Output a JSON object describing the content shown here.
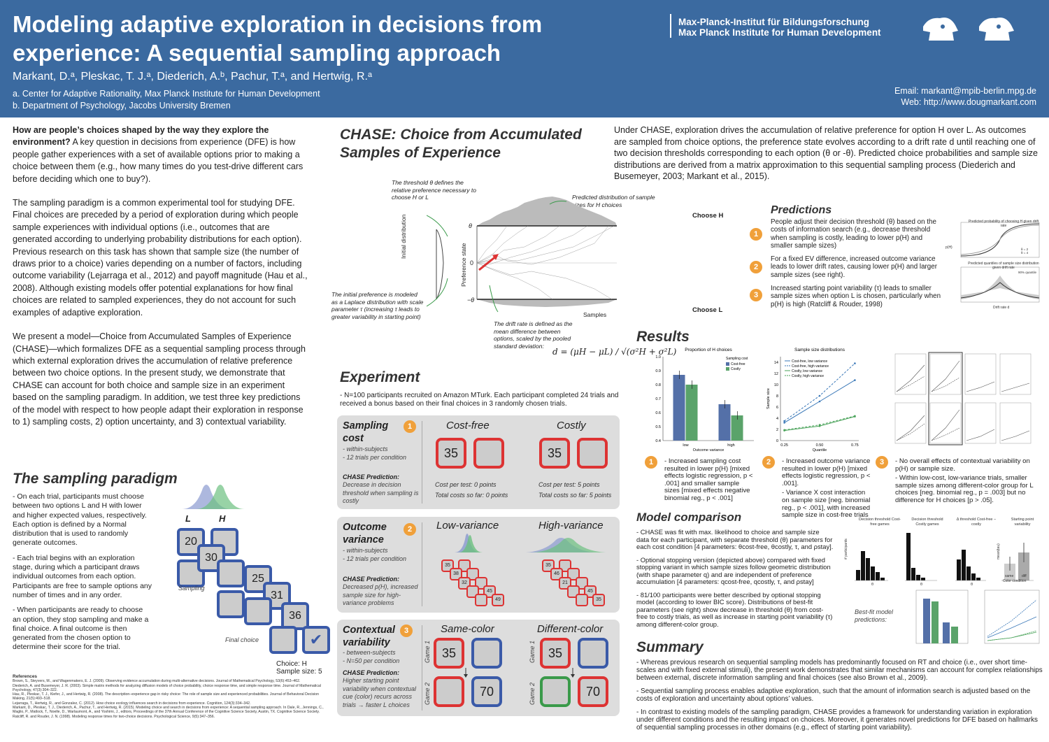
{
  "header": {
    "title": "Modeling adaptive exploration in decisions from experience: A sequential sampling approach",
    "authors": "Markant, D.ᵃ, Pleskac, T. J.ᵃ, Diederich, A.ᵇ, Pachur, T.ᵃ, and Hertwig, R.ᵃ",
    "affil_a": "a. Center for Adaptive Rationality, Max Planck Institute for Human Development",
    "affil_b": "b. Department of Psychology, Jacobs University Bremen",
    "inst_de": "Max-Planck-Institut für Bildungsforschung",
    "inst_en": "Max Planck Institute for Human Development",
    "email": "Email: markant@mpib-berlin.mpg.de",
    "web": "Web: http://www.dougmarkant.com"
  },
  "intro": {
    "q_bold": "How are people’s choices shaped by the way they explore the environment?",
    "q_rest": " A key question in decisions from experience (DFE) is how people gather experiences with a set of available options prior to making a choice between them (e.g., how many times do you test-drive different cars before deciding which one to buy?).",
    "p2": "The sampling paradigm is a common experimental tool for studying DFE. Final choices are preceded by a period of exploration during which people sample experiences with individual options (i.e., outcomes that are generated according to underlying probability distributions for each option). Previous research on this task has shown that sample size (the number of draws prior to a choice) varies depending on a number of factors, including outcome variability (Lejarraga et al., 2012) and payoff magnitude (Hau et al., 2008). Although existing models offer potential explanations for how final choices are related to sampled experiences, they do not account for such examples of adaptive exploration.",
    "p3": "We present a model—Choice from Accumulated Samples of Experience (CHASE)—which formalizes DFE as a sequential sampling process through which external exploration drives the accumulation of relative preference between two choice options. In the present study, we demonstrate that CHASE can account for both choice and sample size in an experiment based on the sampling paradigm. In addition, we test three key predictions of the model with respect to how people adapt their exploration in response to 1) sampling costs, 2) option uncertainty, and 3) contextual variability."
  },
  "sampling": {
    "title": "The sampling paradigm",
    "b1": "- On each trial, participants must choose between two options L and H with lower and higher expected values, respectively. Each option is defined by a Normal distribution that is used to randomly generate outcomes.",
    "b2": "- Each trial begins with an exploration stage, during which a participant draws individual outcomes from each option. Participants are free to sample options any number of times and in any order.",
    "b3": "- When participants are ready to choose an option, they stop sampling and make a final choice. A final outcome is then generated from the chosen option to determine their score for the trial.",
    "label_L": "L",
    "label_H": "H",
    "tiles": [
      "20",
      "30",
      "25",
      "31",
      "36"
    ],
    "sampling_label": "Sampling",
    "final_label": "Final choice",
    "choice": "Choice: H",
    "size": "Sample size: 5",
    "check": "✔"
  },
  "refs": {
    "title": "References",
    "items": [
      "Brown, S., Steyvers, M., and Wagenmakers, E. J. (2009). Observing evidence accumulation during multi-alternative decisions. Journal of Mathematical Psychology, 53(6):453–462.",
      "Diederich, A. and Busemeyer, J. R. (2003). Simple matrix methods for analyzing diffusion models of choice probability, choice response time, and simple response time. Journal of Mathematical Psychology, 47(3):304–322.",
      "Hau, R., Pleskac, T. J., Kiefer, J., and Hertwig, R. (2008). The description–experience gap in risky choice: The role of sample size and experienced probabilities. Journal of Behavioral Decision Making, 21(5):493–518.",
      "Lejarraga, T., Hertwig, R., and Gonzalez, C. (2012). How choice ecology influences search in decisions from experience. Cognition, 124(3):334–342.",
      "Markant, D., Pleskac, T. J., Diederich, A., Pachur, T., and Hertwig, R. (2015). Modeling choice and search in decisions from experience: A sequential sampling approach. In Dale, R., Jennings, C., Maglio, P., Matlock, T., Noelle, D., Warlaumont, A., and Yoshimi, J., editors, Proceedings of the 37th Annual Conference of the Cognitive Science Society, Austin, TX. Cognitive Science Society.",
      "Ratcliff, R. and Rouder, J. N. (1998). Modeling response times for two-choice decisions. Psychological Science, 9(5):347–356."
    ]
  },
  "chase": {
    "title1": "CHASE: Choice from Accumulated",
    "title2": "Samples of Experience",
    "desc": "Under CHASE, exploration drives the accumulation of relative preference for option H over L. As outcomes are sampled from choice options, the preference state evolves according to a drift rate d until reaching one of two decision thresholds corresponding to each option (θ or -θ). Predicted choice probabilities and sample size distributions are derived from a matrix approximation to this sequential sampling process (Diederich and Busemeyer, 2003; Markant et al., 2015).",
    "ann_threshold": "The threshold θ defines the relative preference necessary to choose H or L",
    "ann_dist": "Predicted distribution of sample sizes for H choices",
    "ann_initial": "The initial preference is modeled as a Laplace distribution with scale parameter τ (increasing τ leads to greater variability in starting point)",
    "ann_drift": "The drift rate is defined as the mean difference between options, scaled by the pooled standard deviation:",
    "formula": "d = (μH − μL) / √(σ²H + σ²L)",
    "choose_h": "Choose H",
    "choose_l": "Choose L",
    "theta": "θ",
    "zero": "0",
    "neg_theta": "−θ",
    "initial_label": "Initial distribution",
    "pref_label": "Preference state",
    "samples_label": "Samples"
  },
  "predictions": {
    "title": "Predictions",
    "items": [
      {
        "n": "1",
        "text": "People adjust their decision threshold (θ) based on the costs of information search (e.g., decrease threshold when sampling is costly, leading to lower p(H) and smaller sample sizes)"
      },
      {
        "n": "2",
        "text": "For a fixed EV difference, increased outcome variance leads to lower drift rates, causing lower p(H) and larger sample sizes (see right)."
      },
      {
        "n": "3",
        "text": "Increased starting point variability (τ) leads to smaller sample sizes when option L is chosen, particularly when p(H) is high (Ratcliff & Rouder, 1998)"
      }
    ],
    "chart1_title": "Predicted probability of choosing H given drift rate",
    "chart2_title": "Predicted quantiles of sample size distribution given drift rate",
    "x_label": "Drift rate d",
    "y1_label": "p(H)",
    "y2_label": "Number of samples",
    "leg_a": "θ = 2",
    "leg_b": "θ = 4",
    "q_label": "90% quantile"
  },
  "experiment": {
    "title": "Experiment",
    "desc": "- N=100 participants recruited on Amazon MTurk. Each participant completed 24 trials and received a bonus based on their final choices in 3 randomly chosen trials.",
    "rows": [
      {
        "n": "1",
        "title": "Sampling cost",
        "d1": "- within-subjects",
        "d2": "- 12 trials per condition",
        "pred_h": "CHASE Prediction:",
        "pred": "Decrease in decision threshold when sampling is costly",
        "left": "Cost-free",
        "right": "Costly",
        "tile": "35",
        "l1": "Cost per test: 0 points",
        "l2": "Total costs so far: 0 points",
        "r1": "Cost per test: 5 points",
        "r2": "Total costs so far: 5 points"
      },
      {
        "n": "2",
        "title": "Outcome variance",
        "d1": "- within-subjects",
        "d2": "- 12 trials per condition",
        "pred_h": "CHASE Prediction:",
        "pred": "Decreased p(H), increased sample size for high-variance problems",
        "left": "Low-variance",
        "right": "High-variance",
        "low_tiles": [
          "35",
          "38",
          "32",
          "45",
          "49"
        ],
        "high_tiles": [
          "35",
          "46",
          "21",
          "45",
          "35"
        ]
      },
      {
        "n": "3",
        "title": "Contextual variability",
        "d1": "- between-subjects",
        "d2": "- N=50 per condition",
        "pred_h": "CHASE Prediction:",
        "pred": "Higher starting point variability when contextual cue (color) recurs across trials → faster L choices",
        "left": "Same-color",
        "right": "Different-color",
        "g1": "Game 1",
        "g2": "Game 2",
        "t1": "35",
        "t2": "70"
      }
    ]
  },
  "results": {
    "title": "Results",
    "items": [
      {
        "n": "1",
        "text": "- Increased sampling cost resulted in lower p(H) [mixed effects logistic regression, p < .001] and smaller sample sizes [mixed effects negative binomial reg., p < .001]"
      },
      {
        "n": "2",
        "text": "- Increased outcome variance resulted in lower p(H) [mixed effects logistic regression, p < .001].",
        "text2": "- Variance X cost interaction on sample size [neg. binomial reg., p < .001], with increased sample size in cost-free trials"
      },
      {
        "n": "3",
        "text": "- No overall effects of contextual variability on p(H) or sample size.",
        "text2": "- Within low-cost, low-variance trials, smaller sample sizes among different-color group for L choices [neg. binomial reg., p = .003] but no difference for H choices [p > .05]."
      }
    ]
  },
  "chart_data": [
    {
      "type": "bar",
      "title": "Proportion of H choices",
      "xlabel": "Outcome variance",
      "ylabel": "",
      "categories": [
        "low",
        "high"
      ],
      "ylim": [
        0.4,
        1.0
      ],
      "legend_title": "Sampling cost",
      "series": [
        {
          "name": "Cost-free",
          "values": [
            0.87,
            0.66
          ],
          "color": "#5470a8"
        },
        {
          "name": "Costly",
          "values": [
            0.8,
            0.58
          ],
          "color": "#5aa36a"
        }
      ]
    },
    {
      "type": "line",
      "title": "Sample size distributions",
      "xlabel": "Quantile",
      "ylabel": "Sample size",
      "x": [
        0.25,
        0.5,
        0.75
      ],
      "ylim": [
        0,
        15
      ],
      "series": [
        {
          "name": "Cost-free, low variance",
          "values": [
            3.2,
            7.0,
            10.8
          ],
          "color": "#3a78b8"
        },
        {
          "name": "Cost-free, high variance",
          "values": [
            3.5,
            8.0,
            13.8
          ],
          "color": "#3a78b8"
        },
        {
          "name": "Costly, low variance",
          "values": [
            1.8,
            2.6,
            4.3
          ],
          "color": "#4aa35a"
        },
        {
          "name": "Costly, high variance",
          "values": [
            1.9,
            2.8,
            4.4
          ],
          "color": "#4aa35a"
        }
      ]
    }
  ],
  "model": {
    "title": "Model comparison",
    "b1": "- CHASE was fit with max. likelihood to choice and sample size data for each participant, with separate threshold (θ) parameters for each cost condition [4 parameters: θcost-free, θcostly, τ, and ρstay].",
    "b2": "- Optional stopping version (depicted above) compared with fixed stopping variant in which sample sizes follow geometric distribution (with shape parameter q) and are independent of preference accumulation [4 parameters: qcost-free, qcostly, τ, and ρstay]",
    "b3": "- 81/100 participants were better described by optional stopping model (according to lower BIC score). Distributions of best-fit parameters (see right) show decrease in threshold (θ) from cost-free to costly trials, as well as increase in starting point variability (τ) among different-color group.",
    "h1": "Decision threshold Cost-free games",
    "h2": "Decision threshold Costly games",
    "h3": "Δ threshold Cost-free − costly",
    "h4": "Starting point variability",
    "bestfit": "Best-fit model predictions:",
    "x1": "θ",
    "x2": "θ",
    "x3": "θ",
    "x4a": "same",
    "x4b": "diff",
    "x4c": "Color condition",
    "ylab": "# participants",
    "ylab4": "mean(tau)"
  },
  "summary": {
    "title": "Summary",
    "b1": "- Whereas previous research on sequential sampling models has predominantly focused on RT and choice (i.e., over short time-scales and with fixed external stimuli), the present work demonstrates that similar mechanisms can account for complex relationships between external, discrete information sampling and final choices (see also Brown et al., 2009).",
    "b2": "- Sequential sampling process enables adaptive exploration, such that the amount of information search is adjusted based on the costs of exploration and uncertainty about options’ values.",
    "b3": "- In contrast to existing models of the sampling paradigm, CHASE provides a framework for understanding variation in exploration under different conditions and the resulting impact on choices. Moreover, it generates novel predictions for DFE based on hallmarks of sequential sampling processes in other domains (e.g., effect of starting point variability)."
  },
  "colors": {
    "header": "#3b6aa0",
    "accent": "#f0a03a",
    "red": "#d33",
    "blue": "#3a5aa8",
    "green": "#3a9a4a"
  }
}
